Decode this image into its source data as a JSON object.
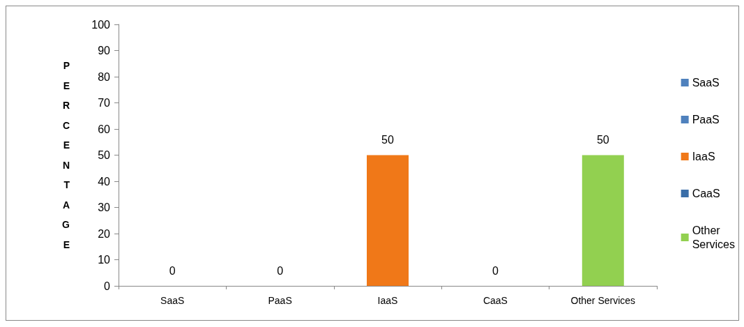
{
  "chart_data": {
    "type": "bar",
    "ylabel": "PERCENTAGE",
    "categories": [
      "SaaS",
      "PaaS",
      "IaaS",
      "CaaS",
      "Other Services"
    ],
    "series": [
      {
        "name": "SaaS",
        "color": "#4f81bd",
        "values": [
          0,
          null,
          null,
          null,
          null
        ]
      },
      {
        "name": "PaaS",
        "color": "#4f81bd",
        "values": [
          null,
          0,
          null,
          null,
          null
        ]
      },
      {
        "name": "IaaS",
        "color": "#f07818",
        "values": [
          null,
          null,
          50,
          null,
          null
        ]
      },
      {
        "name": "CaaS",
        "color": "#3a6ea8",
        "values": [
          null,
          null,
          null,
          0,
          null
        ]
      },
      {
        "name": "Other Services",
        "color": "#92d050",
        "values": [
          null,
          null,
          null,
          null,
          50
        ]
      }
    ],
    "ylim": [
      0,
      100
    ],
    "yticks": [
      0,
      10,
      20,
      30,
      40,
      50,
      60,
      70,
      80,
      90,
      100
    ],
    "data_labels": true,
    "grid": false,
    "legend": "right"
  }
}
